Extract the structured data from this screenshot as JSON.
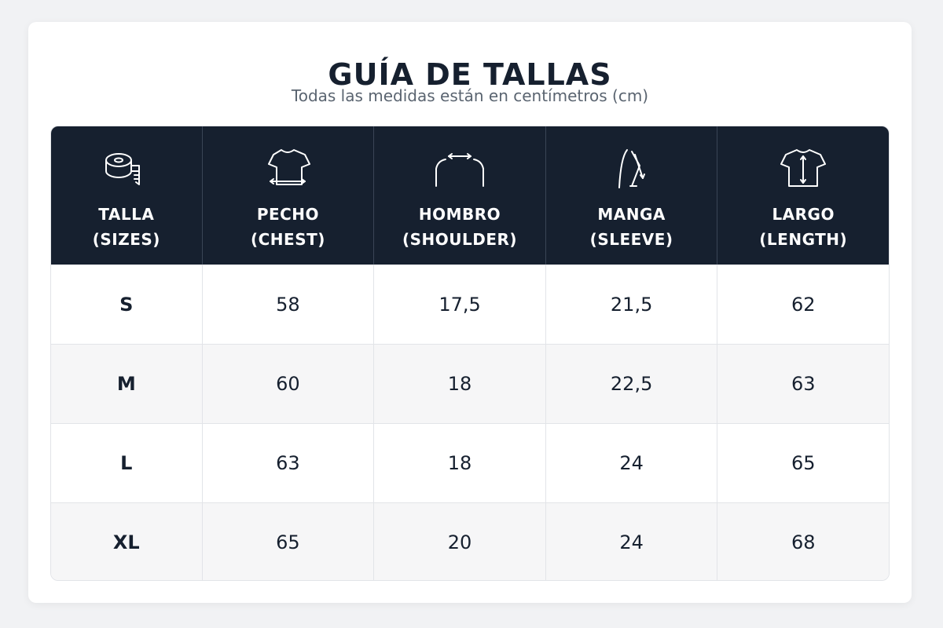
{
  "header": {
    "title": "GUÍA DE TALLAS",
    "subtitle": "Todas las medidas están en centímetros (cm)"
  },
  "columns": [
    {
      "line1": "TALLA",
      "line2": "(SIZES)",
      "icon": "measuring-tape-icon"
    },
    {
      "line1": "PECHO",
      "line2": "(CHEST)",
      "icon": "tshirt-chest-icon"
    },
    {
      "line1": "HOMBRO",
      "line2": "(SHOULDER)",
      "icon": "shoulder-width-icon"
    },
    {
      "line1": "MANGA",
      "line2": "(SLEEVE)",
      "icon": "sleeve-length-icon"
    },
    {
      "line1": "LARGO",
      "line2": "(LENGTH)",
      "icon": "tshirt-length-icon"
    }
  ],
  "rows": [
    {
      "size": "S",
      "chest": "58",
      "shoulder": "17,5",
      "sleeve": "21,5",
      "length": "62"
    },
    {
      "size": "M",
      "chest": "60",
      "shoulder": "18",
      "sleeve": "22,5",
      "length": "63"
    },
    {
      "size": "L",
      "chest": "63",
      "shoulder": "18",
      "sleeve": "24",
      "length": "65"
    },
    {
      "size": "XL",
      "chest": "65",
      "shoulder": "20",
      "sleeve": "24",
      "length": "68"
    }
  ],
  "colors": {
    "header_bg": "#16202f",
    "header_text": "#ffffff",
    "alt_row_bg": "#f6f6f7",
    "text": "#16202f",
    "subtitle": "#5a6470"
  }
}
